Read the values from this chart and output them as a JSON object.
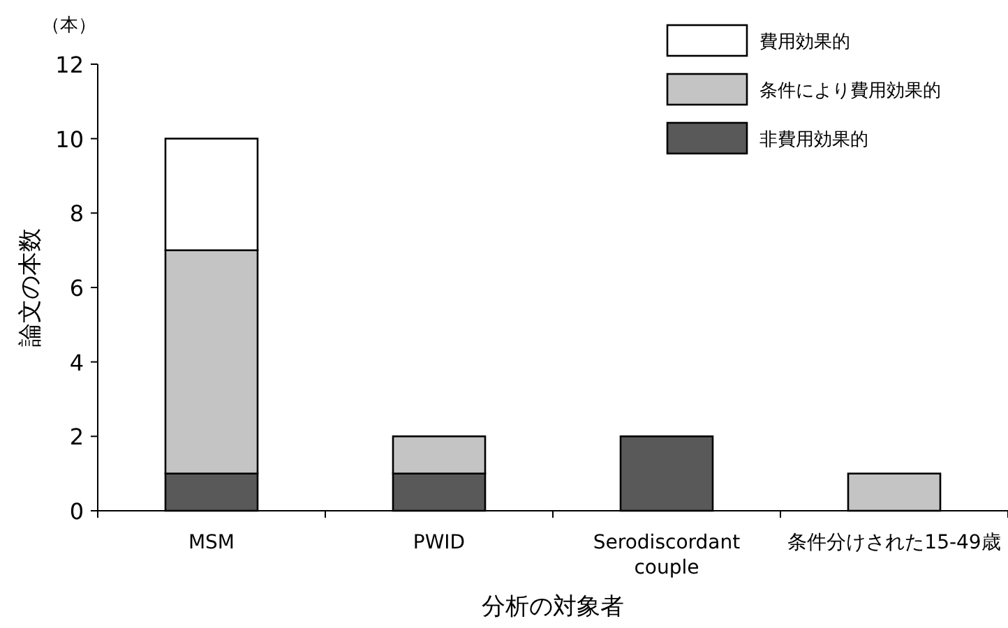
{
  "chart_data": {
    "type": "bar",
    "stacked": true,
    "ylabel": "論文の本数",
    "xlabel": "分析の対象者",
    "annotations": [
      "（本）"
    ],
    "categories": [
      "MSM",
      "PWID",
      "Serodiscordant couple",
      "条件分けされた15-49歳"
    ],
    "series": [
      {
        "name": "非費用効果的",
        "color": "#595959",
        "values": [
          1,
          1,
          2,
          0
        ]
      },
      {
        "name": "条件により費用効果的",
        "color": "#c4c4c4",
        "values": [
          6,
          1,
          0,
          1
        ]
      },
      {
        "name": "費用効果的",
        "color": "#ffffff",
        "values": [
          3,
          0,
          0,
          0
        ]
      }
    ],
    "ylim": [
      0,
      12
    ],
    "yticks": [
      0,
      2,
      4,
      6,
      8,
      10,
      12
    ],
    "grid": false,
    "legend": "top right"
  }
}
